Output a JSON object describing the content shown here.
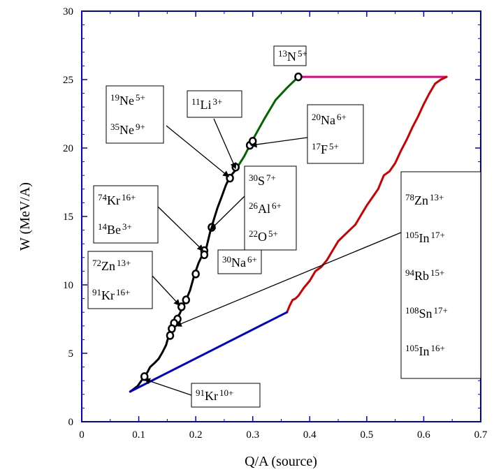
{
  "chart_data": {
    "type": "line",
    "xlabel": "Q/A (source)",
    "ylabel": "W (MeV/A)",
    "xlim": [
      0,
      0.7
    ],
    "ylim": [
      0,
      30
    ],
    "xticks": [
      0,
      0.1,
      0.2,
      0.3,
      0.4,
      0.5,
      0.6,
      0.7
    ],
    "xtick_labels": [
      "0",
      "0.1",
      "0.2",
      "0.3",
      "0.4",
      "0.5",
      "0.6",
      "0.7"
    ],
    "yticks": [
      0,
      5,
      10,
      15,
      20,
      25,
      30
    ],
    "ytick_labels": [
      "0",
      "5",
      "10",
      "15",
      "20",
      "25",
      "30"
    ],
    "grid": false,
    "series": [
      {
        "color": "#000000",
        "points": [
          [
            0.085,
            2.2
          ],
          [
            0.098,
            2.6
          ],
          [
            0.108,
            3.2
          ],
          [
            0.115,
            3.6
          ],
          [
            0.12,
            4.0
          ],
          [
            0.128,
            4.3
          ],
          [
            0.135,
            4.6
          ],
          [
            0.142,
            5.1
          ],
          [
            0.148,
            5.6
          ],
          [
            0.152,
            6.2
          ],
          [
            0.155,
            6.8
          ],
          [
            0.16,
            7.1
          ],
          [
            0.165,
            7.5
          ],
          [
            0.172,
            7.9
          ],
          [
            0.178,
            8.5
          ],
          [
            0.183,
            8.9
          ],
          [
            0.19,
            9.6
          ],
          [
            0.196,
            10.5
          ],
          [
            0.2,
            11.0
          ],
          [
            0.205,
            11.6
          ],
          [
            0.213,
            12.3
          ],
          [
            0.218,
            12.6
          ],
          [
            0.222,
            13.3
          ],
          [
            0.226,
            14.0
          ],
          [
            0.232,
            14.8
          ],
          [
            0.238,
            15.6
          ],
          [
            0.246,
            16.5
          ],
          [
            0.253,
            17.3
          ],
          [
            0.26,
            17.9
          ],
          [
            0.266,
            18.2
          ],
          [
            0.27,
            18.4
          ]
        ]
      },
      {
        "color": "#006400",
        "points": [
          [
            0.27,
            18.4
          ],
          [
            0.285,
            19.4
          ],
          [
            0.3,
            20.6
          ],
          [
            0.32,
            22.1
          ],
          [
            0.34,
            23.5
          ],
          [
            0.36,
            24.4
          ],
          [
            0.38,
            25.2
          ]
        ]
      },
      {
        "color": "#e6007e",
        "points": [
          [
            0.385,
            25.2
          ],
          [
            0.64,
            25.2
          ]
        ]
      },
      {
        "color": "#cc0000",
        "points": [
          [
            0.36,
            8.0
          ],
          [
            0.365,
            8.5
          ],
          [
            0.37,
            8.9
          ],
          [
            0.375,
            9.0
          ],
          [
            0.38,
            9.2
          ],
          [
            0.39,
            9.8
          ],
          [
            0.4,
            10.3
          ],
          [
            0.41,
            11.0
          ],
          [
            0.42,
            11.3
          ],
          [
            0.43,
            11.8
          ],
          [
            0.44,
            12.5
          ],
          [
            0.45,
            13.2
          ],
          [
            0.46,
            13.6
          ],
          [
            0.47,
            14.0
          ],
          [
            0.48,
            14.4
          ],
          [
            0.49,
            15.1
          ],
          [
            0.5,
            15.8
          ],
          [
            0.51,
            16.4
          ],
          [
            0.52,
            17.0
          ],
          [
            0.53,
            18.0
          ],
          [
            0.54,
            18.3
          ],
          [
            0.55,
            18.9
          ],
          [
            0.56,
            19.8
          ],
          [
            0.57,
            20.6
          ],
          [
            0.58,
            21.5
          ],
          [
            0.59,
            22.3
          ],
          [
            0.6,
            23.2
          ],
          [
            0.61,
            24.0
          ],
          [
            0.62,
            24.7
          ],
          [
            0.63,
            25.0
          ],
          [
            0.64,
            25.2
          ]
        ]
      },
      {
        "color": "#0000cc",
        "points": [
          [
            0.085,
            2.2
          ],
          [
            0.36,
            8.0
          ]
        ]
      }
    ],
    "markers": [
      [
        0.38,
        25.2
      ],
      [
        0.295,
        20.2
      ],
      [
        0.3,
        20.5
      ],
      [
        0.27,
        18.6
      ],
      [
        0.26,
        17.8
      ],
      [
        0.228,
        14.2
      ],
      [
        0.215,
        12.5
      ],
      [
        0.215,
        12.2
      ],
      [
        0.2,
        10.8
      ],
      [
        0.183,
        8.9
      ],
      [
        0.175,
        8.4
      ],
      [
        0.168,
        7.5
      ],
      [
        0.162,
        7.2
      ],
      [
        0.158,
        6.8
      ],
      [
        0.155,
        6.3
      ],
      [
        0.11,
        3.3
      ]
    ],
    "annotations": [
      {
        "id": "n13",
        "lines": [
          {
            "mass": "13",
            "el": "N",
            "charge": "5+"
          }
        ],
        "arrow_to": null
      },
      {
        "id": "ne",
        "lines": [
          {
            "mass": "19",
            "el": "Ne",
            "charge": "5+"
          },
          {
            "mass": "35",
            "el": "Ne",
            "charge": "9+"
          }
        ],
        "arrow_to": [
          0.258,
          17.9
        ]
      },
      {
        "id": "li",
        "lines": [
          {
            "mass": "11",
            "el": "Li",
            "charge": "3+"
          }
        ],
        "arrow_to": [
          0.27,
          18.5
        ]
      },
      {
        "id": "naf",
        "lines": [
          {
            "mass": "20",
            "el": "Na",
            "charge": "6+"
          },
          {
            "mass": "17",
            "el": "F",
            "charge": "5+"
          }
        ],
        "arrow_to": [
          0.297,
          20.2
        ]
      },
      {
        "id": "kr74",
        "lines": [
          {
            "mass": "74",
            "el": "Kr",
            "charge": "16+"
          },
          {
            "mass": "14",
            "el": "Be",
            "charge": "3+"
          }
        ],
        "arrow_to": [
          0.213,
          12.5
        ]
      },
      {
        "id": "sal",
        "lines": [
          {
            "mass": "30",
            "el": "S",
            "charge": "7+"
          },
          {
            "mass": "26",
            "el": "Al",
            "charge": "6+"
          },
          {
            "mass": "22",
            "el": "O",
            "charge": "5+"
          }
        ],
        "arrow_to": [
          0.225,
          14.0
        ]
      },
      {
        "id": "na30",
        "lines": [
          {
            "mass": "30",
            "el": "Na",
            "charge": "6+"
          }
        ],
        "arrow_to": null
      },
      {
        "id": "zn72",
        "lines": [
          {
            "mass": "72",
            "el": "Zn",
            "charge": "13+"
          },
          {
            "mass": "91",
            "el": "Kr",
            "charge": "16+"
          }
        ],
        "arrow_to": [
          0.172,
          8.5
        ]
      },
      {
        "id": "kr91",
        "lines": [
          {
            "mass": "91",
            "el": "Kr",
            "charge": "10+"
          }
        ],
        "arrow_to": [
          0.11,
          3.1
        ]
      },
      {
        "id": "heavy",
        "lines": [
          {
            "mass": "78",
            "el": "Zn",
            "charge": "13+"
          },
          {
            "mass": "105",
            "el": "In",
            "charge": "17+"
          },
          {
            "mass": "94",
            "el": "Rb",
            "charge": "15+"
          },
          {
            "mass": "108",
            "el": "Sn",
            "charge": "17+"
          },
          {
            "mass": "105",
            "el": "In",
            "charge": "16+"
          }
        ],
        "arrow_to": [
          0.165,
          7.0
        ]
      }
    ]
  }
}
